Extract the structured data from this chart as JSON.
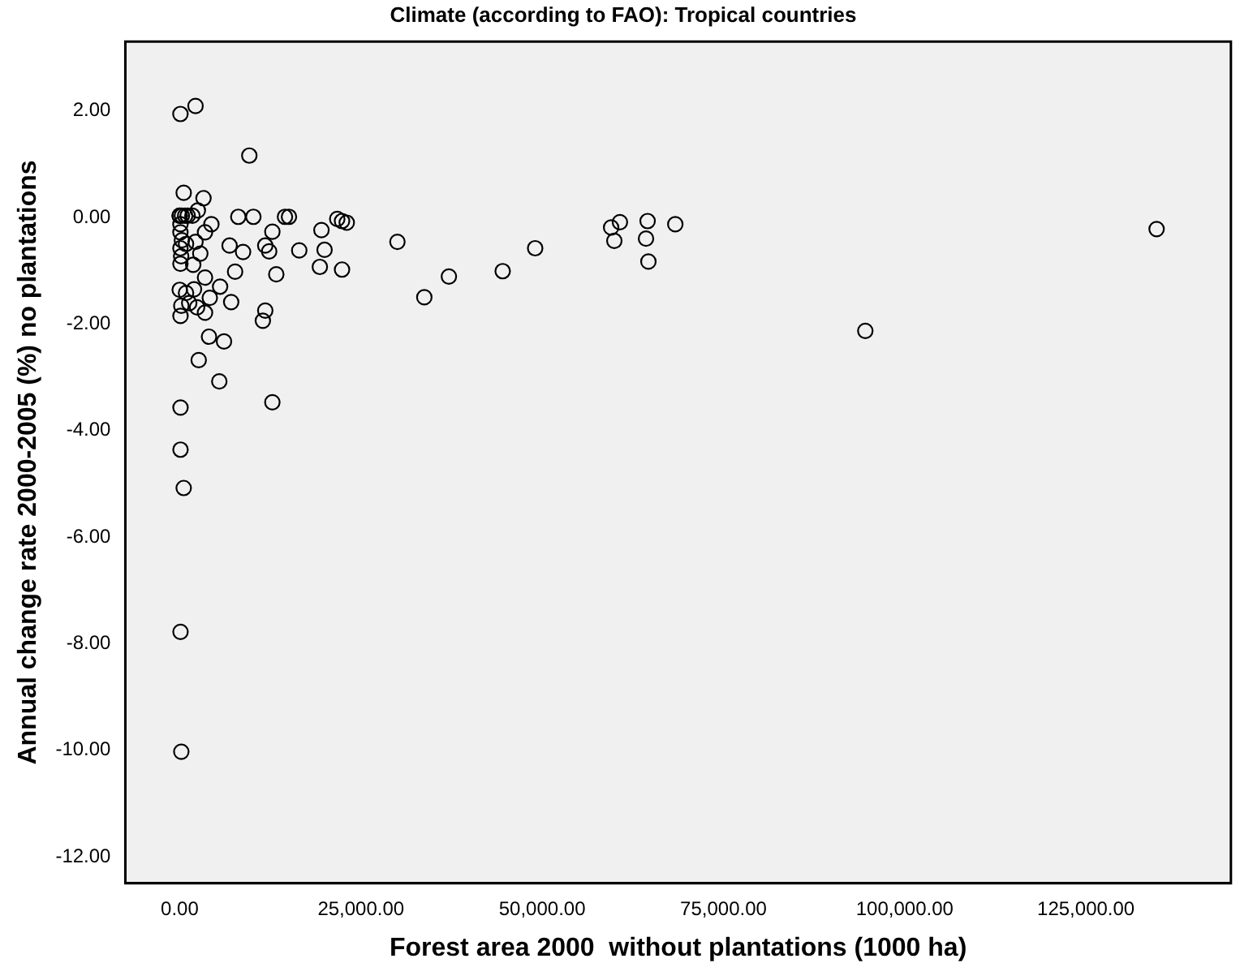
{
  "chart_data": {
    "type": "scatter",
    "title": "Climate (according to FAO): Tropical countries",
    "xlabel": "Forest area 2000  without plantations (1000 ha)",
    "ylabel": "Annual change rate 2000-2005 (%) no plantations",
    "x": [
      100,
      2180,
      9600,
      550,
      3280,
      0,
      0,
      300,
      750,
      1100,
      1750,
      2500,
      4370,
      3490,
      100,
      100,
      300,
      100,
      200,
      100,
      2180,
      2840,
      1860,
      870,
      8080,
      10160,
      14520,
      15070,
      21730,
      22390,
      23040,
      19550,
      12780,
      6880,
      8740,
      11800,
      12340,
      16490,
      19980,
      19330,
      22390,
      13320,
      7640,
      3490,
      0,
      870,
      1970,
      5570,
      4150,
      7100,
      2400,
      220,
      1310,
      3490,
      110,
      11800,
      11470,
      4040,
      6110,
      2620,
      5460,
      12780,
      110,
      110,
      550,
      110,
      220,
      30030,
      33740,
      37130,
      44550,
      49030,
      59510,
      60720,
      59950,
      64540,
      64320,
      64650,
      68360,
      94570,
      134750
    ],
    "values": [
      1.94,
      2.09,
      1.16,
      0.46,
      0.36,
      0.03,
      0.03,
      0.03,
      0.03,
      0.03,
      0.03,
      0.13,
      -0.13,
      -0.28,
      -0.13,
      -0.28,
      -0.43,
      -0.58,
      -0.73,
      -0.87,
      -0.46,
      -0.68,
      -0.89,
      -0.5,
      0.01,
      0.01,
      0.01,
      0.01,
      -0.03,
      -0.07,
      -0.1,
      -0.24,
      -0.27,
      -0.53,
      -0.65,
      -0.53,
      -0.64,
      -0.62,
      -0.61,
      -0.93,
      -0.98,
      -1.07,
      -1.02,
      -1.13,
      -1.36,
      -1.42,
      -1.35,
      -1.3,
      -1.51,
      -1.59,
      -1.69,
      -1.66,
      -1.61,
      -1.79,
      -1.85,
      -1.75,
      -1.94,
      -2.24,
      -2.33,
      -2.68,
      -3.08,
      -3.47,
      -3.57,
      -4.36,
      -5.08,
      -7.78,
      -10.03,
      -0.46,
      -1.5,
      -1.11,
      -1.01,
      -0.58,
      -0.19,
      -0.09,
      -0.44,
      -0.07,
      -0.4,
      -0.83,
      -0.13,
      -2.13,
      -0.22
    ],
    "color": "#000000",
    "marker": "circle",
    "grid": false,
    "legend": false,
    "xlim": [
      -7500,
      145000
    ],
    "ylim": [
      -12.5,
      3.3
    ],
    "xticks": [
      {
        "value": 0,
        "label": "0.00"
      },
      {
        "value": 25000,
        "label": "25,000.00"
      },
      {
        "value": 50000,
        "label": "50,000.00"
      },
      {
        "value": 75000,
        "label": "75,000.00"
      },
      {
        "value": 100000,
        "label": "100,000.00"
      },
      {
        "value": 125000,
        "label": "125,000.00"
      }
    ],
    "yticks": [
      {
        "value": 2,
        "label": "2.00"
      },
      {
        "value": 0,
        "label": "0.00"
      },
      {
        "value": -2,
        "label": "-2.00"
      },
      {
        "value": -4,
        "label": "-4.00"
      },
      {
        "value": -6,
        "label": "-6.00"
      },
      {
        "value": -8,
        "label": "-8.00"
      },
      {
        "value": -10,
        "label": "-10.00"
      },
      {
        "value": -12,
        "label": "-12.00"
      }
    ]
  }
}
